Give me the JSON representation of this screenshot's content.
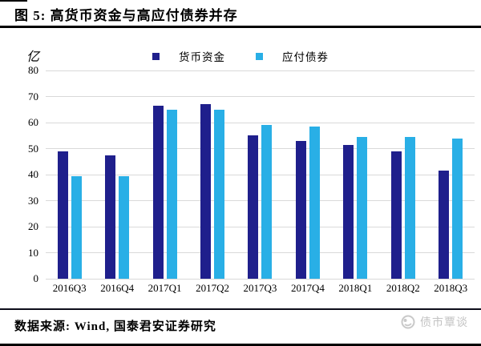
{
  "header": {
    "title": "图 5: 高货币资金与高应付债券并存"
  },
  "chart_data": {
    "type": "bar",
    "title": "图 5: 高货币资金与高应付债券并存",
    "unit_label": "亿",
    "categories": [
      "2016Q3",
      "2016Q4",
      "2017Q1",
      "2017Q2",
      "2017Q3",
      "2017Q4",
      "2018Q1",
      "2018Q2",
      "2018Q3"
    ],
    "series": [
      {
        "name": "货币资金",
        "color": "#1F1F8C",
        "values": [
          49,
          47.5,
          66.5,
          67,
          55,
          53,
          51.5,
          49,
          41.5
        ]
      },
      {
        "name": "应付债券",
        "color": "#29AFE6",
        "values": [
          39.5,
          39.5,
          65,
          65,
          59,
          58.5,
          54.5,
          54.5,
          54
        ]
      }
    ],
    "ylim": [
      0,
      80
    ],
    "yticks": [
      80,
      70,
      60,
      50,
      40,
      30,
      20,
      10,
      0
    ],
    "grid": true,
    "gridline_color": "#D9D9D9",
    "legend_position": "top-center"
  },
  "footer": {
    "source": "数据来源: Wind, 国泰君安证券研究",
    "watermark": "债市覃谈"
  }
}
